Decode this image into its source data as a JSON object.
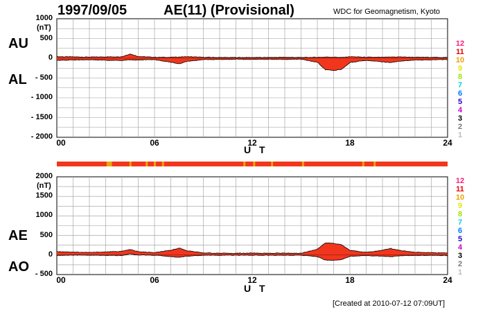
{
  "header": {
    "date": "1997/09/05",
    "title": "AE(11) (Provisional)",
    "source": "WDC for Geomagnetism, Kyoto"
  },
  "footer": {
    "created": "[Created at 2010-07-12 07:09UT]"
  },
  "colors": {
    "fill": "#f2361d",
    "outline": "#000000",
    "grid": "#999999",
    "bar_main": "#f2361d",
    "bar_mark": "#e6a800"
  },
  "legend": [
    {
      "label": "12",
      "color": "#ff1e78"
    },
    {
      "label": "11",
      "color": "#e60000"
    },
    {
      "label": "10",
      "color": "#f0a000"
    },
    {
      "label": "9",
      "color": "#e6e600"
    },
    {
      "label": "8",
      "color": "#9be600"
    },
    {
      "label": "7",
      "color": "#00d2e6"
    },
    {
      "label": "6",
      "color": "#0078ff"
    },
    {
      "label": "5",
      "color": "#2800c8"
    },
    {
      "label": "4",
      "color": "#c800c8"
    },
    {
      "label": "3",
      "color": "#000000"
    },
    {
      "label": "2",
      "color": "#777777"
    },
    {
      "label": "1",
      "color": "#bbbbbb"
    }
  ],
  "station_bar": {
    "marks_ut": [
      3.1,
      3.2,
      3.3,
      4.5,
      5.5,
      6.0,
      6.5,
      11.5,
      12.1,
      13.2,
      15.1,
      18.8,
      19.5
    ]
  },
  "chart_data": [
    {
      "type": "area",
      "upper_label": "AU",
      "lower_label": "AL",
      "unit": "(nT)",
      "xlabel": "U T",
      "xlim": [
        0,
        24
      ],
      "ylim": [
        -2000,
        1000
      ],
      "yticks": [
        1000,
        500,
        0,
        -500,
        -1000,
        -1500,
        -2000
      ],
      "ytick_labels": [
        "1000",
        "500",
        "0",
        "- 500",
        "- 1000",
        "- 1500",
        "- 2000"
      ],
      "xticks": [
        0,
        6,
        12,
        18,
        24
      ],
      "xtick_labels": [
        "00",
        "06",
        "12",
        "18",
        "24"
      ],
      "grid": true,
      "series": [
        {
          "name": "AU",
          "x": [
            0,
            1,
            2,
            3,
            4,
            4.5,
            5,
            6,
            7,
            8,
            9,
            10,
            11,
            12,
            13,
            14,
            15,
            16,
            16.5,
            17,
            17.5,
            18,
            19,
            20,
            21,
            22,
            23,
            24
          ],
          "y": [
            40,
            35,
            30,
            35,
            40,
            110,
            45,
            25,
            25,
            40,
            25,
            20,
            20,
            20,
            20,
            25,
            20,
            25,
            30,
            30,
            20,
            40,
            25,
            25,
            35,
            25,
            25,
            20
          ]
        },
        {
          "name": "AL",
          "x": [
            0,
            1,
            2,
            3,
            4,
            4.5,
            5,
            6,
            7,
            7.5,
            8,
            9,
            10,
            11,
            12,
            13,
            14,
            15,
            16,
            16.5,
            17,
            17.5,
            18,
            19,
            20,
            20.5,
            21,
            22,
            23,
            24
          ],
          "y": [
            -55,
            -45,
            -40,
            -50,
            -60,
            -40,
            -45,
            -35,
            -100,
            -140,
            -80,
            -35,
            -30,
            -25,
            -30,
            -25,
            -30,
            -25,
            -100,
            -290,
            -310,
            -280,
            -110,
            -55,
            -90,
            -110,
            -75,
            -45,
            -40,
            -35
          ]
        }
      ]
    },
    {
      "type": "area",
      "upper_label": "AE",
      "lower_label": "AO",
      "unit": "(nT)",
      "xlabel": "U T",
      "xlim": [
        0,
        24
      ],
      "ylim": [
        -500,
        2000
      ],
      "yticks": [
        2000,
        1500,
        1000,
        500,
        0,
        -500
      ],
      "ytick_labels": [
        "2000",
        "1500",
        "1000",
        "500",
        "0",
        "- 500"
      ],
      "xticks": [
        0,
        6,
        12,
        18,
        24
      ],
      "xtick_labels": [
        "00",
        "06",
        "12",
        "18",
        "24"
      ],
      "grid": true,
      "series": [
        {
          "name": "AE",
          "x": [
            0,
            1,
            2,
            3,
            4,
            4.5,
            5,
            6,
            7,
            7.5,
            8,
            9,
            10,
            11,
            12,
            13,
            14,
            15,
            16,
            16.5,
            17,
            17.5,
            18,
            19,
            20,
            20.5,
            21,
            22,
            23,
            24
          ],
          "y": [
            90,
            75,
            65,
            80,
            95,
            140,
            85,
            60,
            120,
            180,
            110,
            55,
            45,
            45,
            50,
            45,
            50,
            45,
            150,
            310,
            300,
            260,
            120,
            70,
            120,
            170,
            120,
            70,
            60,
            50
          ]
        },
        {
          "name": "AO",
          "x": [
            0,
            1,
            2,
            3,
            4,
            4.5,
            5,
            6,
            7,
            7.5,
            8,
            9,
            10,
            11,
            12,
            13,
            14,
            15,
            16,
            16.5,
            17,
            17.5,
            18,
            19,
            20,
            20.5,
            21,
            22,
            23,
            24
          ],
          "y": [
            -10,
            -5,
            -5,
            -10,
            -15,
            30,
            0,
            -5,
            -40,
            -60,
            -30,
            -5,
            -5,
            -5,
            -5,
            -5,
            -5,
            -5,
            -40,
            -130,
            -140,
            -120,
            -35,
            -15,
            -30,
            -45,
            -20,
            -10,
            -10,
            -10
          ]
        }
      ]
    }
  ]
}
